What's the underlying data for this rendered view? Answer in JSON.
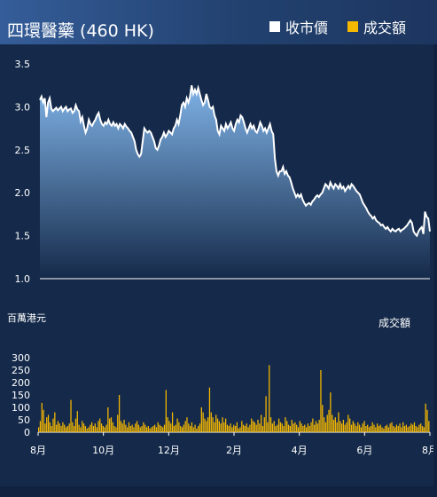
{
  "header": {
    "title": "四環醫藥 (460 HK)",
    "legend_price": "收市價",
    "legend_volume": "成交額"
  },
  "volume_unit_label": "百萬港元",
  "volume_label": "成交額",
  "colors": {
    "background": "#152a4a",
    "price_line": "#ffffff",
    "price_fill_top": "#7fb2e6",
    "price_fill_bottom": "#152a4a",
    "volume_bar": "#f5b800"
  },
  "chart_data": [
    {
      "type": "area",
      "name": "收市價",
      "ylim": [
        1.0,
        3.5
      ],
      "yticks": [
        "1.0",
        "1.5",
        "2.0",
        "2.5",
        "3.0",
        "3.5"
      ],
      "ytick_values": [
        1.0,
        1.5,
        2.0,
        2.5,
        3.0,
        3.5
      ],
      "values": [
        3.08,
        3.12,
        3.05,
        3.1,
        2.88,
        3.05,
        3.1,
        2.98,
        2.95,
        2.97,
        2.99,
        2.96,
        2.98,
        3.0,
        2.95,
        2.98,
        3.0,
        2.95,
        2.97,
        2.98,
        2.93,
        2.95,
        3.02,
        2.97,
        2.95,
        2.83,
        2.88,
        2.78,
        2.7,
        2.75,
        2.85,
        2.8,
        2.78,
        2.82,
        2.85,
        2.9,
        2.93,
        2.85,
        2.8,
        2.78,
        2.82,
        2.8,
        2.85,
        2.8,
        2.78,
        2.82,
        2.78,
        2.8,
        2.75,
        2.8,
        2.78,
        2.75,
        2.8,
        2.77,
        2.75,
        2.72,
        2.7,
        2.65,
        2.6,
        2.5,
        2.45,
        2.42,
        2.45,
        2.6,
        2.75,
        2.72,
        2.7,
        2.72,
        2.7,
        2.65,
        2.6,
        2.52,
        2.5,
        2.55,
        2.62,
        2.65,
        2.7,
        2.65,
        2.68,
        2.72,
        2.7,
        2.68,
        2.75,
        2.78,
        2.85,
        2.8,
        2.9,
        3.02,
        3.05,
        3.0,
        3.1,
        3.05,
        3.12,
        3.25,
        3.15,
        3.2,
        3.15,
        3.22,
        3.15,
        3.08,
        3.02,
        3.05,
        3.15,
        3.08,
        3.0,
        2.98,
        3.0,
        2.9,
        2.85,
        2.72,
        2.68,
        2.78,
        2.75,
        2.72,
        2.8,
        2.75,
        2.78,
        2.82,
        2.75,
        2.72,
        2.8,
        2.85,
        2.82,
        2.9,
        2.88,
        2.82,
        2.75,
        2.7,
        2.75,
        2.8,
        2.75,
        2.78,
        2.72,
        2.7,
        2.75,
        2.82,
        2.78,
        2.72,
        2.75,
        2.7,
        2.75,
        2.8,
        2.72,
        2.68,
        2.4,
        2.25,
        2.2,
        2.25,
        2.25,
        2.3,
        2.22,
        2.25,
        2.2,
        2.18,
        2.12,
        2.05,
        2.0,
        1.95,
        1.98,
        1.95,
        1.98,
        1.92,
        1.88,
        1.85,
        1.87,
        1.88,
        1.86,
        1.9,
        1.92,
        1.95,
        1.97,
        1.95,
        1.98,
        2.0,
        2.05,
        2.1,
        2.08,
        2.05,
        2.12,
        2.08,
        2.05,
        2.1,
        2.08,
        2.05,
        2.1,
        2.05,
        2.07,
        2.02,
        2.05,
        2.08,
        2.05,
        2.1,
        2.08,
        2.05,
        2.02,
        2.0,
        1.98,
        1.93,
        1.88,
        1.85,
        1.82,
        1.78,
        1.75,
        1.73,
        1.7,
        1.72,
        1.68,
        1.66,
        1.65,
        1.62,
        1.63,
        1.6,
        1.58,
        1.6,
        1.57,
        1.55,
        1.58,
        1.56,
        1.55,
        1.57,
        1.58,
        1.55,
        1.57,
        1.58,
        1.6,
        1.62,
        1.65,
        1.68,
        1.65,
        1.55,
        1.52,
        1.5,
        1.55,
        1.58,
        1.6,
        1.52,
        1.78,
        1.72,
        1.7,
        1.55
      ]
    },
    {
      "type": "bar",
      "name": "成交額",
      "ylabel": "百萬港元",
      "ylim": [
        0,
        300
      ],
      "yticks": [
        "300",
        "250",
        "200",
        "150",
        "100",
        "50",
        "0"
      ],
      "ytick_values": [
        300,
        250,
        200,
        150,
        100,
        50,
        0
      ],
      "x_labels": [
        "8月",
        "10月",
        "12月",
        "2月",
        "4月",
        "6月",
        "8月"
      ],
      "values": [
        20,
        45,
        118,
        90,
        35,
        60,
        70,
        40,
        25,
        55,
        80,
        30,
        45,
        35,
        25,
        40,
        30,
        20,
        25,
        35,
        130,
        40,
        25,
        55,
        85,
        30,
        20,
        45,
        35,
        25,
        15,
        20,
        30,
        40,
        25,
        35,
        20,
        45,
        55,
        35,
        25,
        20,
        30,
        100,
        55,
        60,
        40,
        25,
        20,
        70,
        150,
        45,
        35,
        50,
        30,
        20,
        40,
        25,
        30,
        20,
        35,
        45,
        30,
        20,
        25,
        40,
        30,
        20,
        25,
        15,
        20,
        25,
        30,
        20,
        40,
        30,
        25,
        20,
        30,
        170,
        60,
        45,
        35,
        80,
        25,
        30,
        55,
        40,
        25,
        20,
        30,
        45,
        60,
        35,
        25,
        40,
        20,
        30,
        15,
        25,
        35,
        100,
        80,
        55,
        45,
        60,
        180,
        80,
        60,
        40,
        70,
        55,
        45,
        35,
        60,
        40,
        55,
        30,
        25,
        35,
        20,
        30,
        25,
        40,
        15,
        20,
        45,
        30,
        25,
        35,
        20,
        30,
        55,
        45,
        40,
        30,
        50,
        35,
        70,
        25,
        60,
        145,
        40,
        270,
        60,
        35,
        45,
        25,
        30,
        55,
        40,
        35,
        25,
        60,
        45,
        30,
        25,
        50,
        35,
        40,
        30,
        20,
        45,
        35,
        25,
        30,
        20,
        35,
        25,
        40,
        55,
        30,
        45,
        35,
        50,
        250,
        110,
        60,
        40,
        70,
        90,
        160,
        70,
        50,
        60,
        40,
        80,
        45,
        35,
        50,
        30,
        40,
        70,
        55,
        30,
        45,
        35,
        25,
        40,
        30,
        20,
        35,
        45,
        25,
        30,
        20,
        25,
        40,
        30,
        20,
        35,
        25,
        30,
        20,
        15,
        25,
        30,
        20,
        35,
        40,
        25,
        20,
        30,
        25,
        35,
        20,
        40,
        25,
        30,
        20,
        25,
        35,
        30,
        40,
        25,
        20,
        30,
        35,
        25,
        20,
        115,
        90,
        45
      ]
    }
  ]
}
